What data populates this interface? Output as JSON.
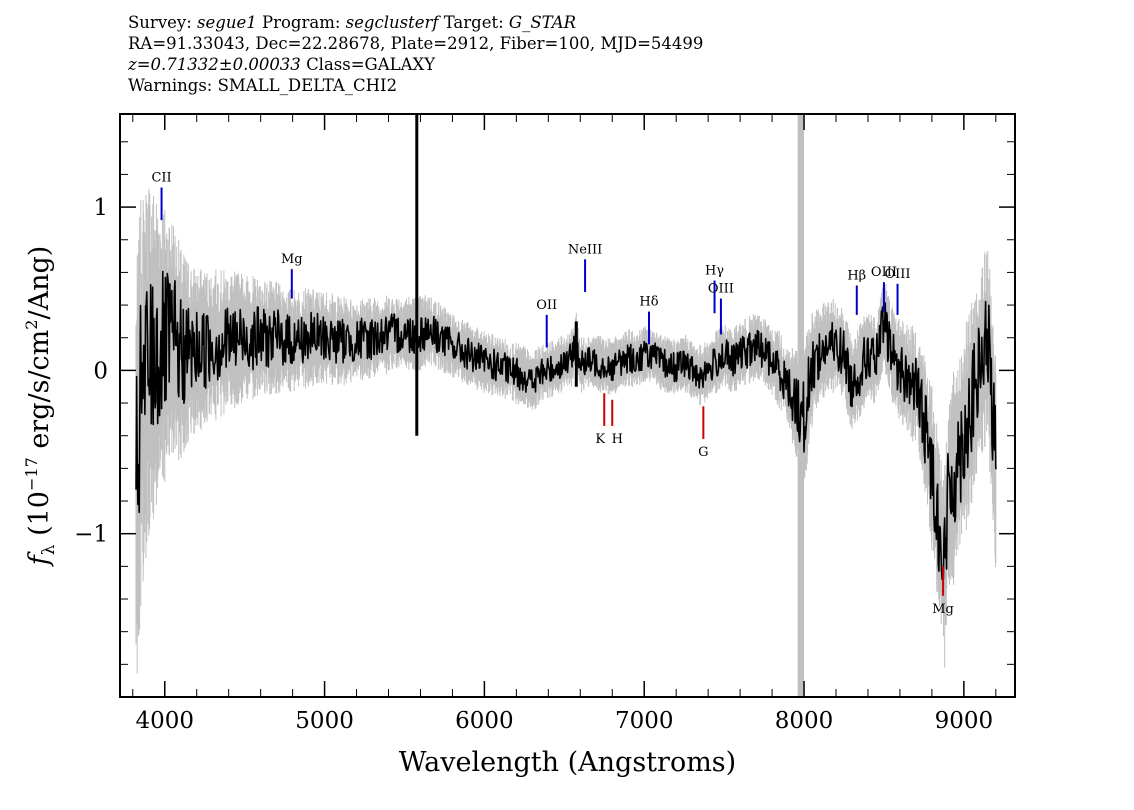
{
  "header": {
    "line1": {
      "survey_label": "Survey:",
      "survey": "segue1",
      "program_label": "Program:",
      "program": "segclusterf",
      "target_label": "Target:",
      "target": "G_STAR"
    },
    "line2": "RA=91.33043, Dec=22.28678, Plate=2912, Fiber=100, MJD=54499",
    "line3": {
      "z": "z=0.71332±0.00033",
      "class": "Class=GALAXY"
    },
    "line4": "Warnings: SMALL_DELTA_CHI2"
  },
  "chart_data": {
    "type": "line",
    "title": "",
    "xlabel": "Wavelength (Angstroms)",
    "ylabel_parts": {
      "f": "f",
      "sub": "λ",
      "prefix": "(10",
      "exp": "−17",
      "mid": " erg/s/cm",
      "exp2": "2",
      "suffix": "/Ang)"
    },
    "xlim": [
      3720,
      9320
    ],
    "ylim": [
      -2.0,
      1.57
    ],
    "xticks": [
      4000,
      5000,
      6000,
      7000,
      8000,
      9000
    ],
    "yticks": [
      1,
      0,
      -1
    ],
    "ytick_labels": [
      "1",
      "0",
      "−1"
    ],
    "colors": {
      "flux": "#000000",
      "error": "#c0c0c0",
      "emission": "#0000cc",
      "absorption": "#cc0000"
    },
    "series": [
      {
        "role": "flux",
        "x": [
          3820,
          3850,
          3900,
          3950,
          4000,
          4050,
          4100,
          4200,
          4300,
          4400,
          4500,
          4600,
          4700,
          4800,
          4900,
          5000,
          5100,
          5200,
          5300,
          5400,
          5500,
          5580,
          5650,
          5700,
          5800,
          5900,
          6000,
          6100,
          6200,
          6250,
          6300,
          6350,
          6400,
          6450,
          6500,
          6550,
          6575,
          6600,
          6650,
          6700,
          6750,
          6800,
          6850,
          6900,
          6950,
          7000,
          7050,
          7100,
          7150,
          7200,
          7250,
          7300,
          7350,
          7400,
          7450,
          7500,
          7550,
          7600,
          7650,
          7700,
          7750,
          7800,
          7850,
          7900,
          7950,
          8000,
          8030,
          8060,
          8100,
          8150,
          8200,
          8250,
          8300,
          8350,
          8400,
          8450,
          8500,
          8550,
          8600,
          8650,
          8700,
          8750,
          8800,
          8850,
          8880,
          8900,
          8950,
          9000,
          9050,
          9100,
          9150,
          9200
        ],
        "y": [
          -0.7,
          -0.2,
          0.05,
          0.1,
          0.15,
          0.2,
          0.1,
          0.12,
          0.15,
          0.18,
          0.2,
          0.2,
          0.2,
          0.18,
          0.2,
          0.2,
          0.18,
          0.18,
          0.2,
          0.22,
          0.23,
          0.22,
          0.25,
          0.22,
          0.15,
          0.1,
          0.05,
          0.02,
          -0.02,
          -0.03,
          -0.08,
          -0.02,
          0.0,
          0.02,
          0.05,
          0.08,
          0.2,
          0.03,
          0.05,
          0.05,
          0.03,
          0.02,
          0.05,
          0.08,
          0.06,
          0.1,
          0.1,
          0.05,
          0.03,
          0.02,
          0.05,
          0.0,
          -0.03,
          0.0,
          0.05,
          0.1,
          0.05,
          0.1,
          0.12,
          0.15,
          0.12,
          0.05,
          0.0,
          -0.1,
          -0.2,
          -0.3,
          -0.1,
          0.05,
          0.1,
          0.15,
          0.15,
          0.1,
          -0.1,
          0.0,
          0.1,
          0.05,
          0.3,
          0.1,
          0.0,
          -0.05,
          -0.1,
          -0.3,
          -0.6,
          -1.0,
          -1.2,
          -0.8,
          -0.6,
          -0.4,
          -0.2,
          0.0,
          0.2,
          -0.6
        ]
      }
    ],
    "error_band": {
      "x": [
        3820,
        3900,
        4000,
        4100,
        4200,
        4400,
        4600,
        4800,
        5000,
        5200,
        5400,
        5600,
        5800,
        6000,
        6200,
        6400,
        6600,
        6800,
        7000,
        7200,
        7400,
        7600,
        7800,
        7900,
        8000,
        8100,
        8300,
        8500,
        8700,
        8800,
        8900,
        9000,
        9100,
        9200
      ],
      "half_width": [
        0.9,
        0.8,
        0.6,
        0.45,
        0.35,
        0.3,
        0.25,
        0.22,
        0.2,
        0.18,
        0.17,
        0.16,
        0.14,
        0.13,
        0.13,
        0.12,
        0.12,
        0.12,
        0.12,
        0.12,
        0.13,
        0.14,
        0.15,
        0.18,
        0.3,
        0.2,
        0.2,
        0.2,
        0.25,
        0.35,
        0.45,
        0.45,
        0.4,
        0.45
      ]
    },
    "spikes": [
      {
        "x": 5577,
        "y_top": 1.6,
        "y_bottom": -0.4
      },
      {
        "x": 6575,
        "y_top": 0.3,
        "y_bottom": -0.1
      }
    ],
    "bad_pixel_bands": [
      {
        "x": 7980,
        "half_width": 20
      }
    ],
    "emission_lines": [
      {
        "label": "CII",
        "x": 3980,
        "y_top": 1.12,
        "y_bottom": 0.92
      },
      {
        "label": "Mg",
        "x": 4795,
        "y_top": 0.62,
        "y_bottom": 0.44
      },
      {
        "label": "OII",
        "x": 6390,
        "y_top": 0.34,
        "y_bottom": 0.14
      },
      {
        "label": "NeIII",
        "x": 6630,
        "y_top": 0.68,
        "y_bottom": 0.48
      },
      {
        "label": "Hδ",
        "x": 7030,
        "y_top": 0.36,
        "y_bottom": 0.16
      },
      {
        "label": "Hγ",
        "x": 7440,
        "y_top": 0.55,
        "y_bottom": 0.35
      },
      {
        "label": "OIII",
        "x": 7480,
        "y_top": 0.44,
        "y_bottom": 0.22
      },
      {
        "label": "Hβ",
        "x": 8330,
        "y_top": 0.52,
        "y_bottom": 0.34
      },
      {
        "label": "OIII",
        "x": 8500,
        "y_top": 0.54,
        "y_bottom": 0.36
      },
      {
        "label": "OIII",
        "x": 8585,
        "y_top": 0.53,
        "y_bottom": 0.34
      }
    ],
    "absorption_lines": [
      {
        "label": "K",
        "x": 6750,
        "y_top": -0.14,
        "y_bottom": -0.34
      },
      {
        "label": "H",
        "x": 6800,
        "y_top": -0.18,
        "y_bottom": -0.34
      },
      {
        "label": "G",
        "x": 7370,
        "y_top": -0.22,
        "y_bottom": -0.42
      },
      {
        "label": "Mg",
        "x": 8870,
        "y_top": -1.2,
        "y_bottom": -1.38
      }
    ]
  }
}
